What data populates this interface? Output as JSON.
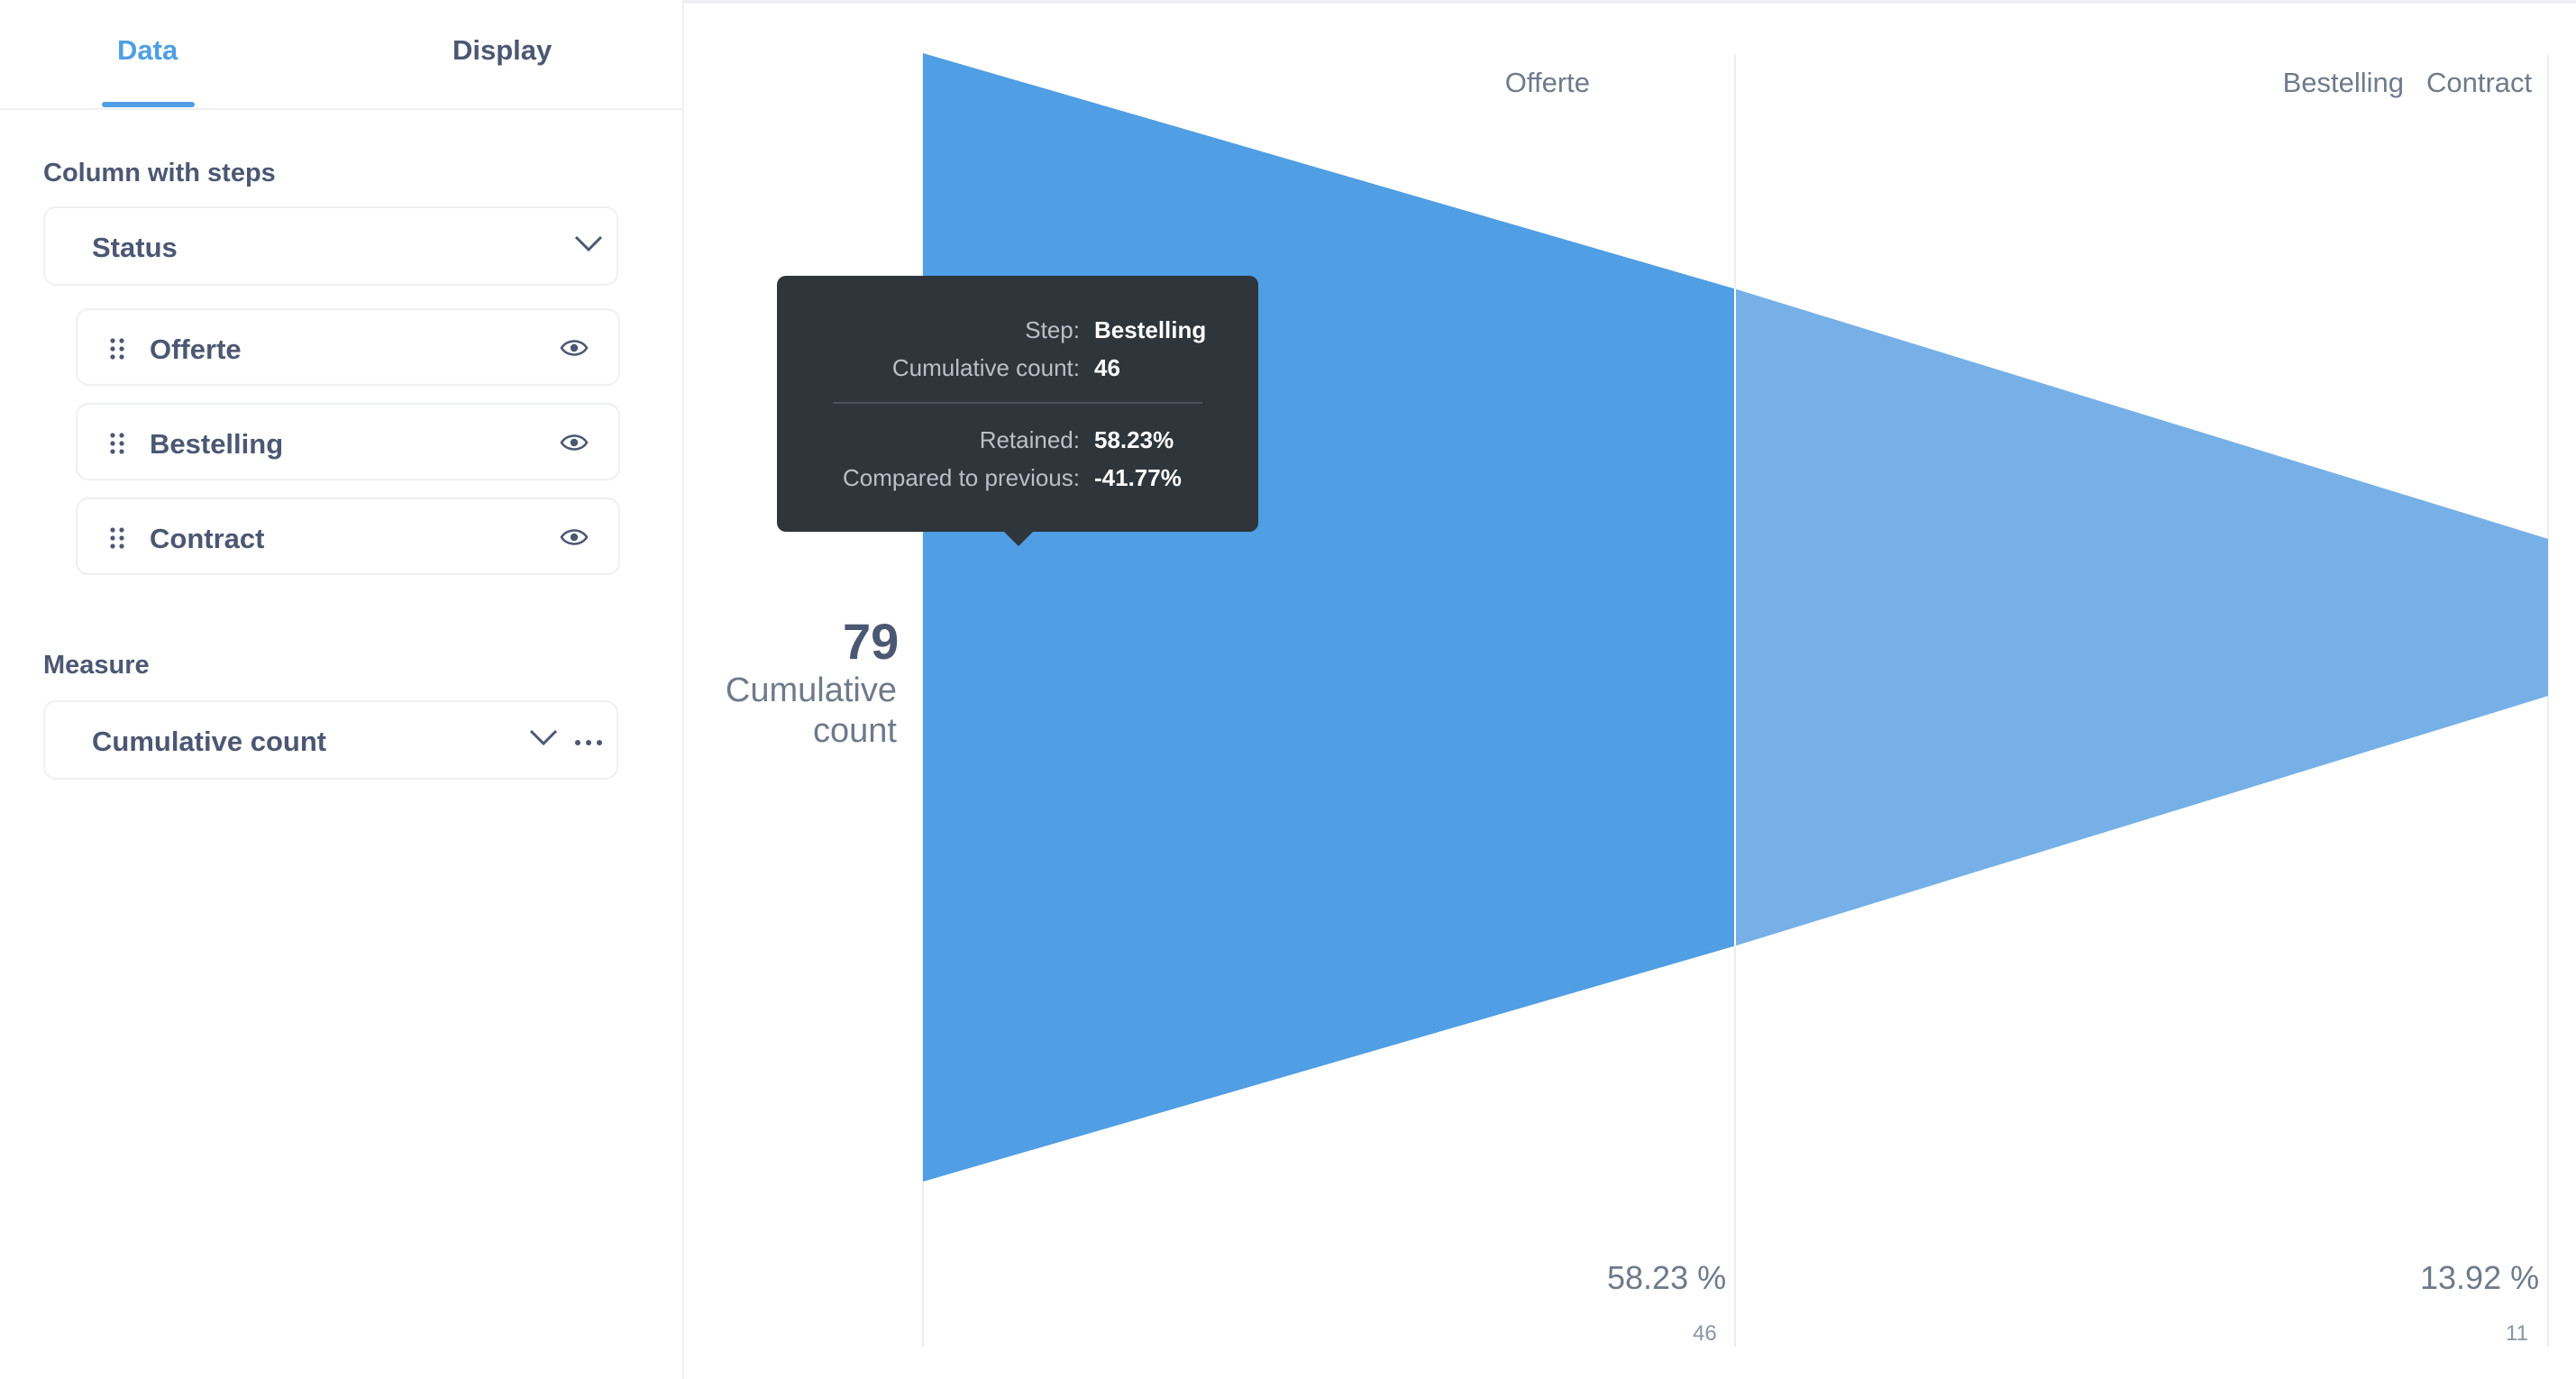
{
  "sidebar": {
    "tabs": [
      {
        "label": "Data",
        "active": true
      },
      {
        "label": "Display",
        "active": false
      }
    ],
    "steps_section": {
      "title": "Column with steps",
      "selected_column": "Status",
      "steps": [
        {
          "label": "Offerte",
          "icon": "eye-icon"
        },
        {
          "label": "Bestelling",
          "icon": "eye-icon"
        },
        {
          "label": "Contract",
          "icon": "eye-icon"
        }
      ]
    },
    "measure_section": {
      "title": "Measure",
      "selected_measure": "Cumulative count"
    }
  },
  "chart": {
    "first_step_value": "79",
    "first_step_label_line1": "Cumulative",
    "first_step_label_line2": "count",
    "step_headers": [
      "Offerte",
      "Bestelling",
      "Contract"
    ],
    "step_percents": [
      "58.23 %",
      "13.92 %"
    ],
    "step_counts": [
      "46",
      "11"
    ]
  },
  "tooltip": {
    "rows": [
      {
        "key": "Step:",
        "value": "Bestelling"
      },
      {
        "key": "Cumulative count:",
        "value": "46"
      },
      {
        "key": "Retained:",
        "value": "58.23%"
      },
      {
        "key": "Compared to previous:",
        "value": "-41.77%"
      }
    ]
  },
  "colors": {
    "accent": "#509ee3",
    "funnel_dark": "#509ee3",
    "funnel_light": "#76b0e7",
    "tooltip_bg": "#2e353b"
  },
  "chart_data": {
    "type": "funnel",
    "categories": [
      "Offerte",
      "Bestelling",
      "Contract"
    ],
    "values": [
      79,
      46,
      11
    ],
    "percents": [
      100,
      58.23,
      13.92
    ]
  }
}
